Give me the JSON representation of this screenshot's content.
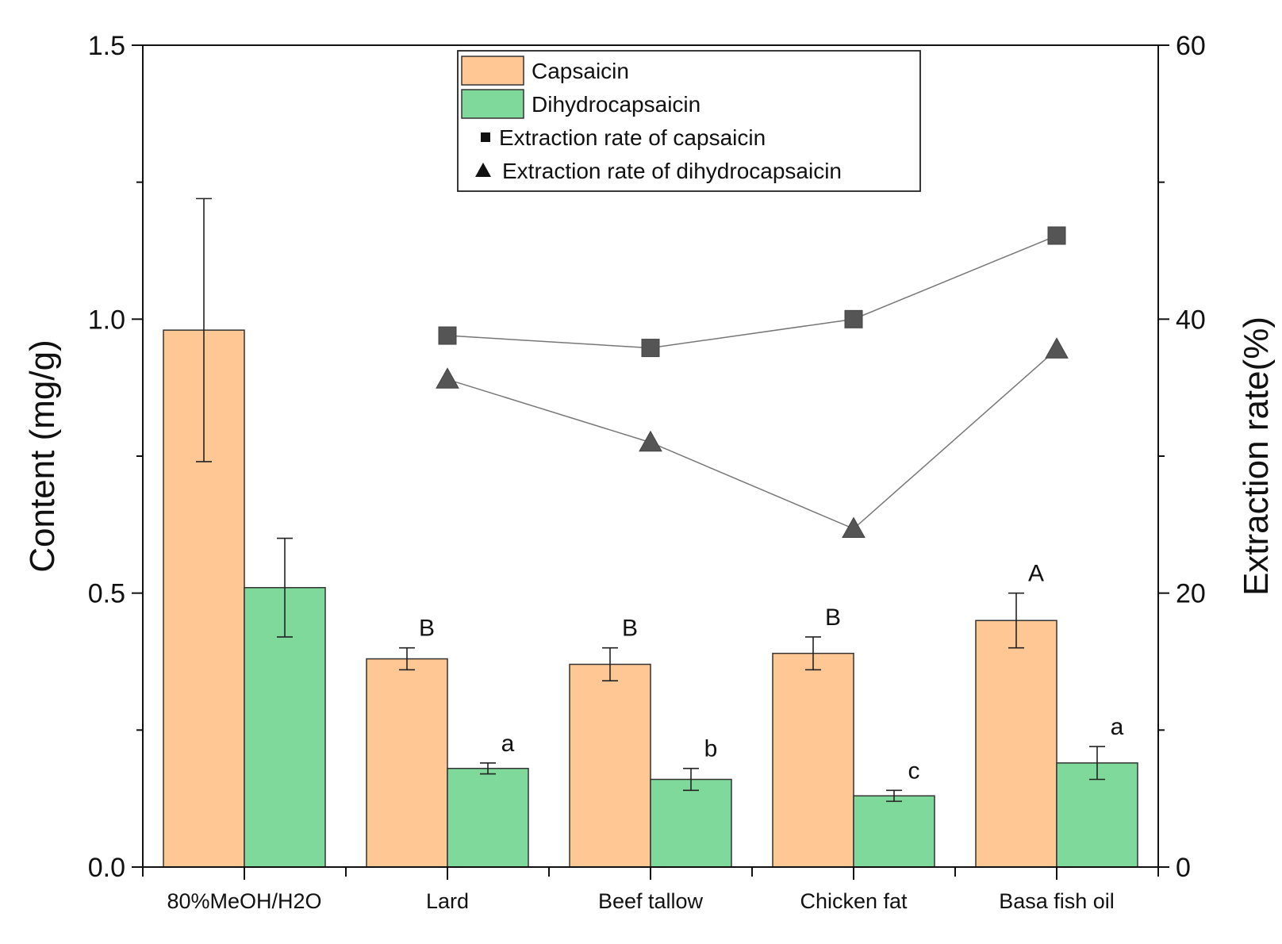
{
  "chart_data": {
    "type": "bar",
    "title": "",
    "categories": [
      "80%MeOH/H2O",
      "Lard",
      "Beef tallow",
      "Chicken fat",
      "Basa fish oil"
    ],
    "ylabel": "Content (mg/g)",
    "y2label": "Extraction rate(%)",
    "ylim": [
      0,
      1.5
    ],
    "y2lim": [
      0,
      60
    ],
    "yticks": [
      "0.0",
      "0.5",
      "1.0",
      "1.5"
    ],
    "y2ticks": [
      "0",
      "20",
      "40",
      "60"
    ],
    "grid": false,
    "legend_position": "top-center",
    "series": [
      {
        "name": "Capsaicin",
        "kind": "bar",
        "color": "#FFC794",
        "values": [
          0.98,
          0.38,
          0.37,
          0.39,
          0.45
        ],
        "errors": [
          0.24,
          0.02,
          0.03,
          0.03,
          0.05
        ],
        "sig_labels": [
          "",
          "B",
          "B",
          "B",
          "A"
        ]
      },
      {
        "name": "Dihydrocapsaicin",
        "kind": "bar",
        "color": "#7FD99A",
        "values": [
          0.51,
          0.18,
          0.16,
          0.13,
          0.19
        ],
        "errors": [
          0.09,
          0.01,
          0.02,
          0.01,
          0.03
        ],
        "sig_labels": [
          "",
          "a",
          "b",
          "c",
          "a"
        ]
      },
      {
        "name": "Extraction rate of capsaicin",
        "kind": "line",
        "axis": "right",
        "marker": "square",
        "color": "#555555",
        "values": [
          null,
          38.8,
          37.9,
          40.0,
          46.1
        ]
      },
      {
        "name": "Extraction rate of dihydrocapsaicin",
        "kind": "line",
        "axis": "right",
        "marker": "triangle",
        "color": "#555555",
        "values": [
          null,
          35.6,
          31.0,
          24.7,
          37.8
        ]
      }
    ]
  }
}
